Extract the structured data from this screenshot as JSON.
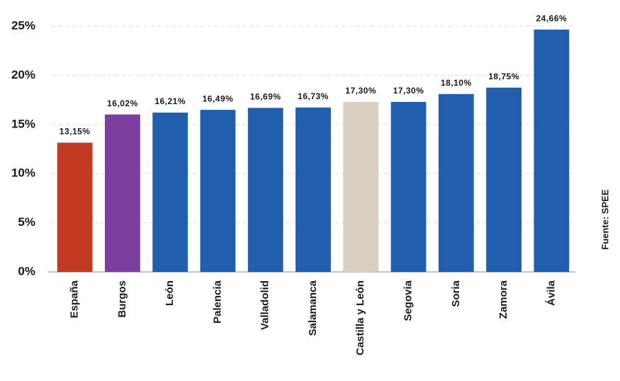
{
  "chart_data": {
    "type": "bar",
    "categories": [
      "España",
      "Burgos",
      "León",
      "Palencia",
      "Valladolid",
      "Salamanca",
      "Castilla y León",
      "Segovia",
      "Soria",
      "Zamora",
      "Ávila"
    ],
    "values": [
      13.15,
      16.02,
      16.21,
      16.49,
      16.69,
      16.73,
      17.3,
      17.3,
      18.1,
      18.75,
      24.66
    ],
    "value_labels": [
      "13,15%",
      "16,02%",
      "16,21%",
      "16,49%",
      "16,69%",
      "16,73%",
      "17,30%",
      "17,30%",
      "18,10%",
      "18,75%",
      "24,66%"
    ],
    "colors": [
      "#c23a22",
      "#7b3fa0",
      "#1f5fad",
      "#1f5fad",
      "#1f5fad",
      "#1f5fad",
      "#d8cfc0",
      "#1f5fad",
      "#1f5fad",
      "#1f5fad",
      "#1f5fad"
    ],
    "ylim": [
      0,
      25
    ],
    "yticks": [
      {
        "value": 0,
        "label": "0%"
      },
      {
        "value": 5,
        "label": "5%"
      },
      {
        "value": 10,
        "label": "10%"
      },
      {
        "value": 15,
        "label": "15%"
      },
      {
        "value": 20,
        "label": "20%"
      },
      {
        "value": 25,
        "label": "25%"
      }
    ],
    "grid": true,
    "source": "Fuente: SPEE"
  }
}
